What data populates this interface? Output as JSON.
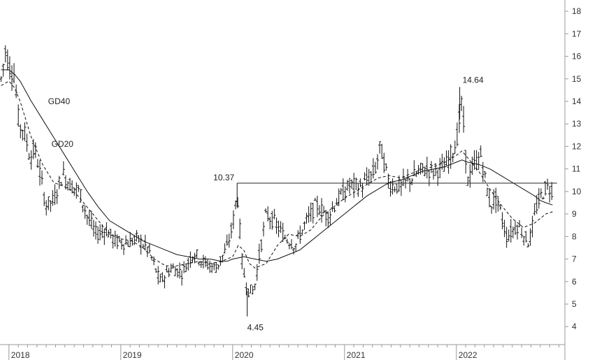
{
  "chart_data": {
    "type": "ohlc",
    "title": "",
    "xlabel": "",
    "ylabel": "",
    "ylim": [
      3.2,
      18.5
    ],
    "xlim": [
      2017.92,
      2022.97
    ],
    "y_ticks": [
      4,
      5,
      6,
      7,
      8,
      9,
      10,
      11,
      12,
      13,
      14,
      15,
      16,
      17,
      18
    ],
    "x_ticks": [
      {
        "value": 2018,
        "label": "2018"
      },
      {
        "value": 2019,
        "label": "2019"
      },
      {
        "value": 2020,
        "label": "2020"
      },
      {
        "value": 2021,
        "label": "2021"
      },
      {
        "value": 2022,
        "label": "2022"
      }
    ],
    "grid": false,
    "price_anchors": [
      [
        2017.93,
        15.0
      ],
      [
        2017.97,
        16.3
      ],
      [
        2018.0,
        15.6
      ],
      [
        2018.05,
        15.2
      ],
      [
        2018.09,
        12.9
      ],
      [
        2018.13,
        12.8
      ],
      [
        2018.19,
        11.5
      ],
      [
        2018.23,
        11.9
      ],
      [
        2018.27,
        11.0
      ],
      [
        2018.33,
        9.4
      ],
      [
        2018.4,
        9.6
      ],
      [
        2018.48,
        10.8
      ],
      [
        2018.55,
        10.3
      ],
      [
        2018.63,
        10.0
      ],
      [
        2018.7,
        8.9
      ],
      [
        2018.78,
        8.1
      ],
      [
        2018.87,
        8.3
      ],
      [
        2018.95,
        7.8
      ],
      [
        2019.05,
        7.7
      ],
      [
        2019.15,
        7.9
      ],
      [
        2019.25,
        7.4
      ],
      [
        2019.35,
        6.0
      ],
      [
        2019.45,
        6.6
      ],
      [
        2019.55,
        6.4
      ],
      [
        2019.65,
        7.3
      ],
      [
        2019.75,
        6.8
      ],
      [
        2019.85,
        6.6
      ],
      [
        2019.95,
        7.5
      ],
      [
        2020.0,
        8.5
      ],
      [
        2020.04,
        10.0
      ],
      [
        2020.09,
        6.5
      ],
      [
        2020.14,
        5.6
      ],
      [
        2020.19,
        5.6
      ],
      [
        2020.24,
        7.2
      ],
      [
        2020.3,
        9.0
      ],
      [
        2020.38,
        8.6
      ],
      [
        2020.46,
        8.0
      ],
      [
        2020.56,
        7.6
      ],
      [
        2020.65,
        8.6
      ],
      [
        2020.75,
        9.4
      ],
      [
        2020.85,
        8.9
      ],
      [
        2020.95,
        9.7
      ],
      [
        2021.05,
        10.3
      ],
      [
        2021.15,
        10.2
      ],
      [
        2021.27,
        10.9
      ],
      [
        2021.32,
        12.0
      ],
      [
        2021.4,
        10.3
      ],
      [
        2021.5,
        10.2
      ],
      [
        2021.6,
        10.6
      ],
      [
        2021.7,
        11.0
      ],
      [
        2021.8,
        10.9
      ],
      [
        2021.9,
        11.1
      ],
      [
        2022.0,
        12.2
      ],
      [
        2022.05,
        14.0
      ],
      [
        2022.1,
        10.4
      ],
      [
        2022.16,
        11.2
      ],
      [
        2022.22,
        11.6
      ],
      [
        2022.3,
        9.4
      ],
      [
        2022.36,
        9.7
      ],
      [
        2022.45,
        8.0
      ],
      [
        2022.55,
        8.5
      ],
      [
        2022.65,
        7.7
      ],
      [
        2022.72,
        9.4
      ],
      [
        2022.8,
        10.2
      ],
      [
        2022.86,
        10.1
      ]
    ],
    "series": [
      {
        "name": "GD40",
        "style": "solid",
        "x": [
          2017.93,
          2018.0,
          2018.05,
          2018.1,
          2018.2,
          2018.3,
          2018.4,
          2018.5,
          2018.6,
          2018.7,
          2018.8,
          2018.9,
          2019.0,
          2019.1,
          2019.2,
          2019.3,
          2019.4,
          2019.5,
          2019.6,
          2019.7,
          2019.8,
          2019.9,
          2019.95,
          2020.0,
          2020.1,
          2020.2,
          2020.3,
          2020.4,
          2020.5,
          2020.6,
          2020.7,
          2020.8,
          2020.9,
          2021.0,
          2021.1,
          2021.2,
          2021.3,
          2021.4,
          2021.5,
          2021.6,
          2021.7,
          2021.8,
          2021.9,
          2022.0,
          2022.05,
          2022.1,
          2022.2,
          2022.3,
          2022.4,
          2022.5,
          2022.6,
          2022.7,
          2022.75,
          2022.8,
          2022.86
        ],
        "y": [
          15.4,
          15.4,
          15.2,
          14.9,
          14.0,
          13.2,
          12.4,
          11.6,
          10.8,
          10.0,
          9.3,
          8.7,
          8.4,
          8.1,
          7.8,
          7.6,
          7.4,
          7.2,
          7.1,
          7.0,
          7.0,
          6.9,
          6.9,
          7.0,
          7.1,
          7.0,
          6.9,
          7.0,
          7.2,
          7.4,
          7.8,
          8.2,
          8.6,
          9.0,
          9.4,
          9.8,
          10.1,
          10.4,
          10.5,
          10.7,
          10.9,
          11.0,
          11.1,
          11.3,
          11.4,
          11.3,
          11.2,
          11.0,
          10.7,
          10.4,
          10.1,
          9.8,
          9.6,
          9.5,
          9.4
        ]
      },
      {
        "name": "GD20",
        "style": "dashed",
        "x": [
          2017.93,
          2018.0,
          2018.05,
          2018.1,
          2018.15,
          2018.2,
          2018.3,
          2018.4,
          2018.5,
          2018.6,
          2018.7,
          2018.8,
          2018.9,
          2019.0,
          2019.1,
          2019.2,
          2019.3,
          2019.4,
          2019.5,
          2019.6,
          2019.7,
          2019.8,
          2019.9,
          2020.0,
          2020.05,
          2020.1,
          2020.15,
          2020.2,
          2020.3,
          2020.4,
          2020.5,
          2020.6,
          2020.7,
          2020.8,
          2020.9,
          2021.0,
          2021.1,
          2021.2,
          2021.3,
          2021.4,
          2021.5,
          2021.6,
          2021.7,
          2021.8,
          2021.9,
          2022.0,
          2022.05,
          2022.1,
          2022.2,
          2022.3,
          2022.4,
          2022.5,
          2022.6,
          2022.7,
          2022.8,
          2022.86
        ],
        "y": [
          14.7,
          14.9,
          14.6,
          14.0,
          13.2,
          12.4,
          11.2,
          10.4,
          10.2,
          9.9,
          9.3,
          8.7,
          8.1,
          7.9,
          7.8,
          7.5,
          7.0,
          6.7,
          6.7,
          6.8,
          6.9,
          6.8,
          6.9,
          7.1,
          7.6,
          7.4,
          6.8,
          6.6,
          6.8,
          7.6,
          8.1,
          8.0,
          8.3,
          8.9,
          9.3,
          9.7,
          10.0,
          10.3,
          10.6,
          10.7,
          10.6,
          10.8,
          11.0,
          11.1,
          11.3,
          11.6,
          11.8,
          11.5,
          10.9,
          10.1,
          9.4,
          8.8,
          8.4,
          8.6,
          9.0,
          9.1
        ]
      }
    ],
    "annotations": [
      {
        "text": "14.64",
        "x": 2022.03,
        "y": 14.64,
        "anchor": "peak"
      },
      {
        "text": "10.37",
        "x": 2020.04,
        "y": 10.37,
        "anchor": "level"
      },
      {
        "text": "4.45",
        "x": 2020.13,
        "y": 4.45,
        "anchor": "trough"
      },
      {
        "text": "GD40",
        "x": 2018.35,
        "y": 14.0,
        "anchor": "series-label"
      },
      {
        "text": "GD20",
        "x": 2018.38,
        "y": 12.1,
        "anchor": "series-label"
      }
    ],
    "reference_line": {
      "y": 10.37,
      "x_start": 2020.04,
      "x_end": 2022.9
    }
  }
}
